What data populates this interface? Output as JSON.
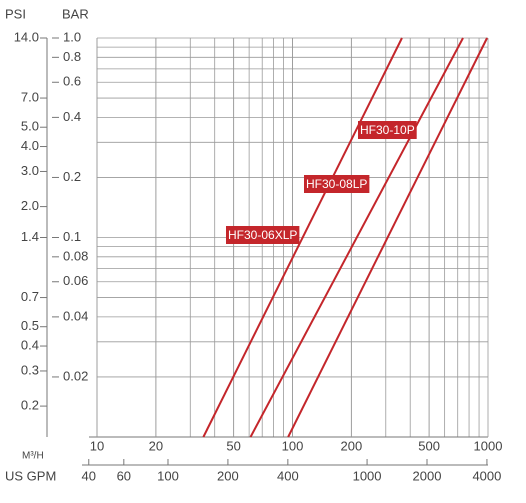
{
  "chart_data": {
    "type": "line",
    "xlabel": "M³/H",
    "x2label": "US GPM",
    "ylabel": "BAR",
    "y2label": "PSI",
    "xscale": "log",
    "yscale": "log",
    "grid": true,
    "xlim": [
      10,
      1000
    ],
    "xticks": [
      10,
      20,
      50,
      100,
      200,
      500,
      1000
    ],
    "x2lim": [
      44,
      4050
    ],
    "x2ticks": [
      40,
      60,
      100,
      200,
      400,
      1000,
      2000,
      4000
    ],
    "ylim": [
      0.01,
      1
    ],
    "yticks": [
      {
        "value": 1,
        "label": "1.0"
      },
      0.8,
      0.6,
      0.4,
      0.2,
      0.1,
      0.08,
      0.06,
      0.04,
      0.02
    ],
    "y2lim": [
      0.14,
      14
    ],
    "y2ticks": [
      {
        "value": 14,
        "label": "14.0"
      },
      {
        "value": 7,
        "label": "7.0"
      },
      {
        "value": 5,
        "label": "5.0"
      },
      {
        "value": 4,
        "label": "4.0"
      },
      {
        "value": 3,
        "label": "3.0"
      },
      {
        "value": 2,
        "label": "2.0"
      },
      1.4,
      0.7,
      0.5,
      0.4,
      0.3,
      0.2
    ],
    "series": [
      {
        "name": "HF30-06XLP",
        "color": "#c4262b",
        "x": [
          35,
          363
        ],
        "values": [
          0.01,
          1
        ]
      },
      {
        "name": "HF30-08LP",
        "color": "#c4262b",
        "x": [
          61,
          745
        ],
        "values": [
          0.01,
          1
        ]
      },
      {
        "name": "HF30-10P",
        "color": "#c4262b",
        "x": [
          95,
          989
        ],
        "values": [
          0.01,
          1
        ]
      }
    ]
  }
}
